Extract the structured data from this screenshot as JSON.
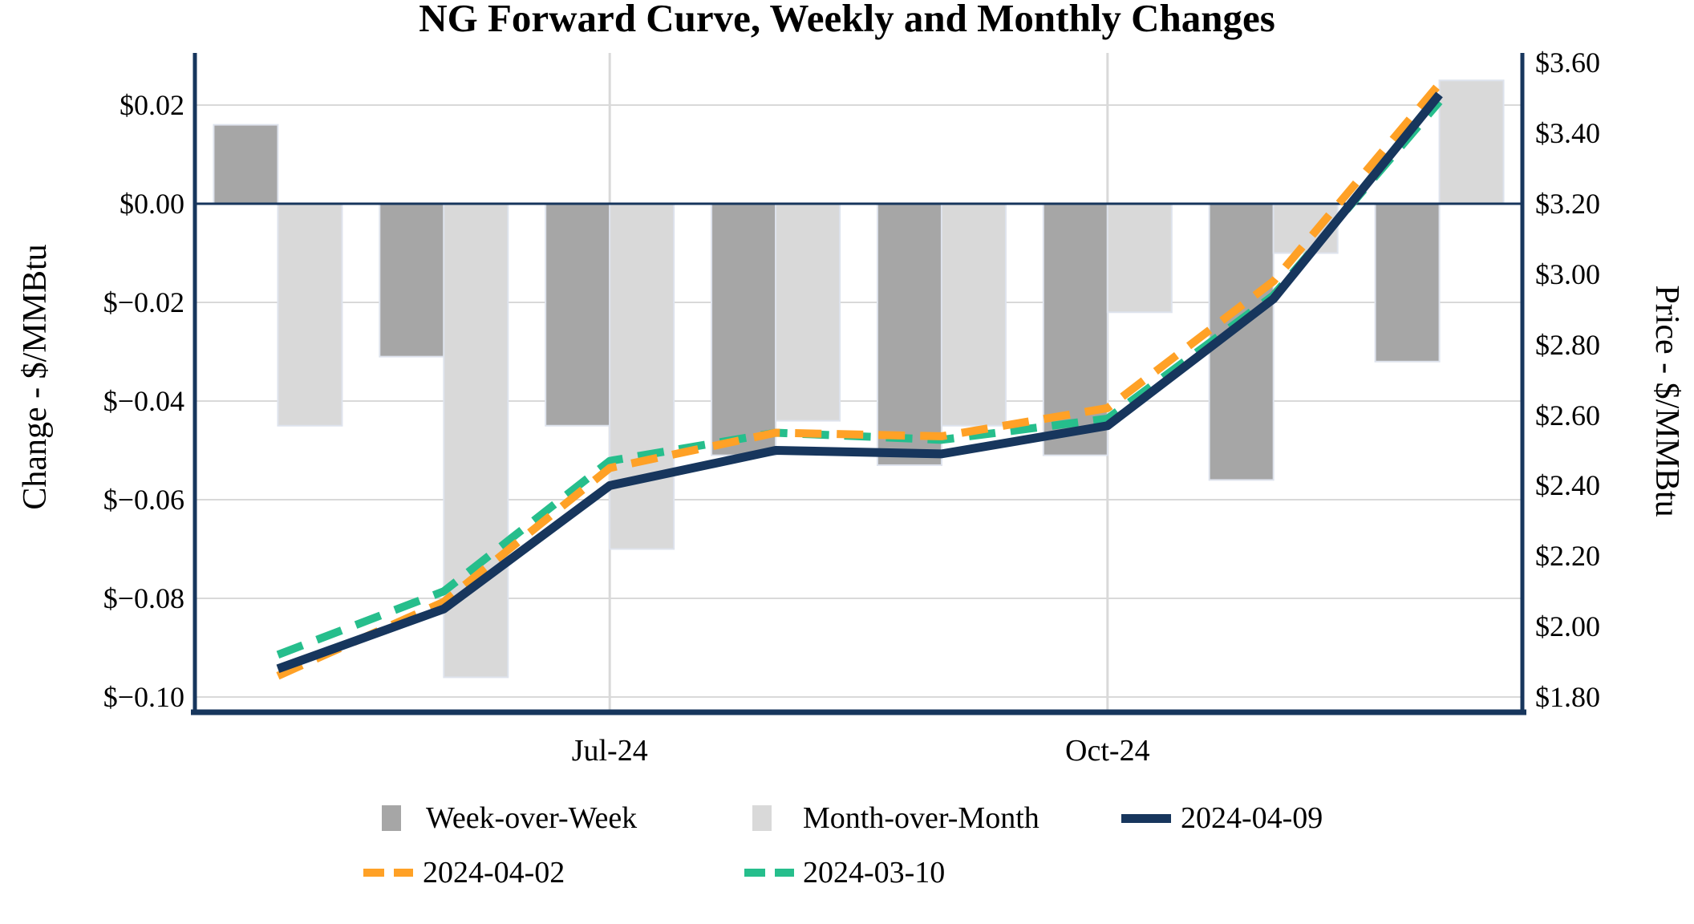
{
  "title": "NG Forward Curve, Weekly and Monthly Changes",
  "left_axis": {
    "title": "Change - $/MMBtu",
    "tick_labels": [
      "$0.02",
      "$0.00",
      "$−0.02",
      "$−0.04",
      "$−0.06",
      "$−0.08",
      "$−0.10"
    ],
    "tick_values": [
      0.02,
      0,
      -0.02,
      -0.04,
      -0.06,
      -0.08,
      -0.1
    ]
  },
  "right_axis": {
    "title": "Price - $/MMBtu",
    "tick_labels": [
      "$3.60",
      "$3.40",
      "$3.20",
      "$3.00",
      "$2.80",
      "$2.60",
      "$2.40",
      "$2.20",
      "$2.00",
      "$1.80"
    ],
    "tick_values": [
      3.6,
      3.4,
      3.2,
      3.0,
      2.8,
      2.6,
      2.4,
      2.2,
      2.0,
      1.8
    ]
  },
  "colors": {
    "navy": "#17365D",
    "orange": "#FFA126",
    "green": "#26BE8C",
    "bar_dark": "#A6A6A6",
    "bar_light": "#D9D9D9",
    "bar_border": "#DEE3ED",
    "gridline": "#D9D9D9",
    "text": "#000000",
    "background": "#FFFFFF"
  },
  "legend": {
    "rows": [
      {
        "items": [
          {
            "type": "bar-swatch",
            "color_key": "bar_dark",
            "label": "Week-over-Week"
          },
          {
            "type": "bar-swatch",
            "color_key": "bar_light",
            "label": "Month-over-Month"
          },
          {
            "type": "line-solid",
            "color_key": "navy",
            "label": "2024-04-09"
          }
        ]
      },
      {
        "items": [
          {
            "type": "line-dashed",
            "color_key": "orange",
            "label": "2024-04-02"
          },
          {
            "type": "line-dashed",
            "color_key": "green",
            "label": "2024-03-10"
          }
        ]
      }
    ]
  },
  "chart_data": {
    "type": "combo-bar-line",
    "categories": [
      1,
      2,
      3,
      4,
      5,
      6,
      7,
      8
    ],
    "x_ticks": [
      {
        "category": 3,
        "label": "Jul-24"
      },
      {
        "category": 6,
        "label": "Oct-24"
      }
    ],
    "left_axis_label": "Change - $/MMBtu",
    "right_axis_label": "Price - $/MMBtu",
    "left_axis_range": {
      "min": -0.1,
      "max": 0.02,
      "gridline_step": 0.02
    },
    "right_axis_range": {
      "min": 1.8,
      "max": 3.6,
      "tick_step": 0.2
    },
    "grid": "horizontal-and-x-tick-verticals",
    "legend_position": "bottom",
    "bar_series": [
      {
        "name": "Week-over-Week",
        "axis": "left",
        "color_key": "bar_dark",
        "values": [
          0.016,
          -0.031,
          -0.045,
          -0.051,
          -0.053,
          -0.051,
          -0.056,
          -0.032
        ]
      },
      {
        "name": "Month-over-Month",
        "axis": "left",
        "color_key": "bar_light",
        "values": [
          -0.045,
          -0.096,
          -0.07,
          -0.044,
          -0.045,
          -0.022,
          -0.01,
          0.025
        ]
      }
    ],
    "line_series": [
      {
        "name": "2024-04-09",
        "axis": "right",
        "style": "solid",
        "color_key": "navy",
        "values": [
          1.88,
          2.05,
          2.4,
          2.5,
          2.49,
          2.57,
          2.93,
          3.51
        ]
      },
      {
        "name": "2024-04-02",
        "axis": "right",
        "style": "dashed",
        "color_key": "orange",
        "values": [
          1.86,
          2.07,
          2.45,
          2.55,
          2.54,
          2.62,
          2.98,
          3.54
        ]
      },
      {
        "name": "2024-03-10",
        "axis": "right",
        "style": "dashed",
        "color_key": "green",
        "values": [
          1.92,
          2.1,
          2.47,
          2.55,
          2.53,
          2.59,
          2.94,
          3.49
        ]
      }
    ]
  }
}
